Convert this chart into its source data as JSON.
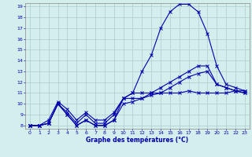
{
  "xlabel": "Graphe des températures (°C)",
  "background_color": "#d4eeee",
  "grid_color": "#aacccc",
  "line_color": "#0000aa",
  "xmin": 0,
  "xmax": 23,
  "ymin": 8,
  "ymax": 19,
  "series": [
    [
      8,
      8,
      8.2,
      10,
      9,
      8,
      8.5,
      8,
      8,
      8.5,
      10.5,
      11,
      13,
      14.5,
      17,
      18.5,
      19.2,
      19.2,
      18.5,
      16.5,
      13.5,
      11.8,
      11.5,
      11.2
    ],
    [
      8,
      8,
      8.2,
      10,
      9.2,
      8.2,
      9,
      8.2,
      8.2,
      9,
      10.5,
      10.5,
      10.5,
      11,
      11,
      11,
      11,
      11.2,
      11,
      11,
      11,
      11,
      11.2,
      11.2
    ],
    [
      8,
      8,
      8.5,
      10.2,
      9.5,
      8.5,
      9.2,
      8.5,
      8.5,
      9.2,
      10.5,
      11,
      11,
      11,
      11.5,
      12,
      12.5,
      13,
      13.5,
      13.5,
      11.8,
      11.5,
      11.2,
      11.0
    ],
    [
      8,
      8,
      8.2,
      10,
      9,
      8,
      8.5,
      8,
      8,
      8.5,
      10,
      10.2,
      10.5,
      10.8,
      11,
      11.5,
      12,
      12.5,
      12.8,
      13,
      11.8,
      11.5,
      11.2,
      11.0
    ]
  ]
}
